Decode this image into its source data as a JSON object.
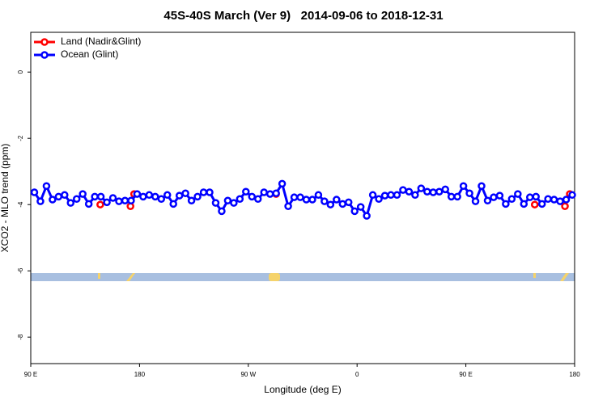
{
  "chart_data": {
    "type": "line",
    "title": "45S-40S March (Ver 9)   2014-09-06 to 2018-12-31",
    "xlabel": "Longitude (deg E)",
    "ylabel": "XCO2 - MLO trend (ppm)",
    "xlim": [
      90,
      540
    ],
    "ylim": [
      -8.8,
      1.2
    ],
    "xticks": [
      {
        "value": 90,
        "label": "90 E"
      },
      180,
      {
        "value": 270,
        "label": "90 W"
      },
      0,
      {
        "value": 450,
        "label": "90 E"
      },
      {
        "value": 540,
        "label": "180"
      }
    ],
    "yticks": [
      0,
      -2,
      -4,
      -6,
      -8
    ],
    "legend": "top-left",
    "series": [
      {
        "name": "Land (Nadir&Glint)",
        "color": "#ff0000",
        "x": [
          147.5,
          172.5,
          175.5,
          293,
          507,
          532,
          536
        ],
        "values": [
          -4.0,
          -4.05,
          -3.68,
          -3.68,
          -4.0,
          -4.05,
          -3.68
        ]
      },
      {
        "name": "Ocean (Glint)",
        "color": "#0000ff",
        "x": [
          93,
          98,
          103,
          108,
          113,
          118,
          123,
          128,
          133,
          138,
          143,
          148,
          153,
          158,
          163,
          168,
          173,
          178,
          183,
          188,
          193,
          198,
          203,
          208,
          213,
          218,
          223,
          228,
          233,
          238,
          243,
          248,
          253,
          258,
          263,
          268,
          273,
          278,
          283,
          288,
          293,
          298,
          303,
          308,
          313,
          318,
          323,
          328,
          333,
          338,
          343,
          348,
          353,
          358,
          363,
          368,
          373,
          378,
          383,
          388,
          393,
          398,
          403,
          408,
          413,
          418,
          423,
          428,
          433,
          438,
          443,
          448,
          453,
          458,
          463,
          468,
          473,
          478,
          483,
          488,
          493,
          498,
          503,
          508,
          513,
          518,
          523,
          528,
          533,
          538
        ],
        "values": [
          -3.63,
          -3.9,
          -3.44,
          -3.85,
          -3.76,
          -3.71,
          -3.95,
          -3.83,
          -3.68,
          -3.98,
          -3.76,
          -3.76,
          -3.93,
          -3.8,
          -3.9,
          -3.88,
          -3.88,
          -3.68,
          -3.76,
          -3.71,
          -3.76,
          -3.83,
          -3.71,
          -3.98,
          -3.73,
          -3.66,
          -3.88,
          -3.76,
          -3.63,
          -3.63,
          -3.95,
          -4.2,
          -3.88,
          -3.95,
          -3.83,
          -3.61,
          -3.76,
          -3.83,
          -3.63,
          -3.68,
          -3.66,
          -3.37,
          -4.05,
          -3.78,
          -3.78,
          -3.85,
          -3.85,
          -3.71,
          -3.9,
          -4.0,
          -3.85,
          -3.98,
          -3.93,
          -4.2,
          -4.07,
          -4.34,
          -3.71,
          -3.83,
          -3.73,
          -3.71,
          -3.71,
          -3.56,
          -3.61,
          -3.71,
          -3.51,
          -3.61,
          -3.63,
          -3.61,
          -3.54,
          -3.76,
          -3.76,
          -3.44,
          -3.66,
          -3.9,
          -3.44,
          -3.88,
          -3.78,
          -3.73,
          -3.98,
          -3.83,
          -3.68,
          -3.98,
          -3.78,
          -3.76,
          -3.98,
          -3.83,
          -3.85,
          -3.9,
          -3.85,
          -3.71
        ]
      }
    ]
  }
}
